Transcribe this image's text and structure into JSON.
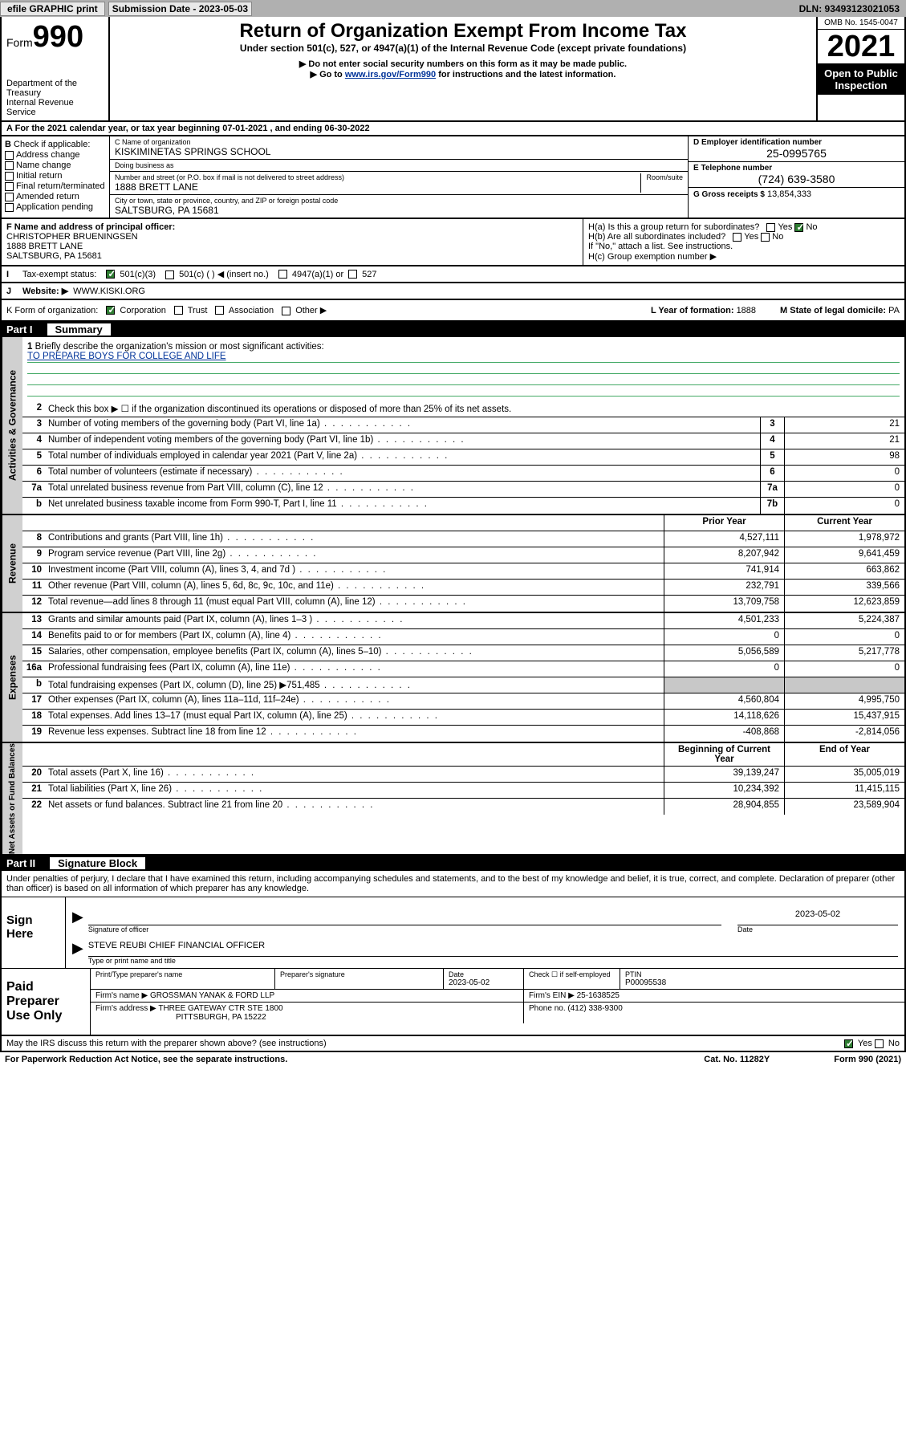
{
  "top": {
    "efile": "efile GRAPHIC print",
    "submission_label": "Submission Date - 2023-05-03",
    "dln": "DLN: 93493123021053"
  },
  "header": {
    "form_label": "Form",
    "form_number": "990",
    "dept": "Department of the Treasury",
    "irs": "Internal Revenue Service",
    "title": "Return of Organization Exempt From Income Tax",
    "subtitle": "Under section 501(c), 527, or 4947(a)(1) of the Internal Revenue Code (except private foundations)",
    "note1": "▶ Do not enter social security numbers on this form as it may be made public.",
    "note2_pre": "▶ Go to ",
    "note2_link": "www.irs.gov/Form990",
    "note2_post": " for instructions and the latest information.",
    "omb": "OMB No. 1545-0047",
    "year": "2021",
    "inspection": "Open to Public Inspection"
  },
  "row_a": "For the 2021 calendar year, or tax year beginning 07-01-2021    , and ending 06-30-2022",
  "b_checks": {
    "title": "Check if applicable:",
    "addr": "Address change",
    "name": "Name change",
    "init": "Initial return",
    "final": "Final return/terminated",
    "amend": "Amended return",
    "app": "Application pending"
  },
  "c": {
    "name_lbl": "C Name of organization",
    "name": "KISKIMINETAS SPRINGS SCHOOL",
    "dba_lbl": "Doing business as",
    "dba": "",
    "street_lbl": "Number and street (or P.O. box if mail is not delivered to street address)",
    "room_lbl": "Room/suite",
    "street": "1888 BRETT LANE",
    "city_lbl": "City or town, state or province, country, and ZIP or foreign postal code",
    "city": "SALTSBURG, PA  15681"
  },
  "d": {
    "ein_lbl": "D Employer identification number",
    "ein": "25-0995765",
    "phone_lbl": "E Telephone number",
    "phone": "(724) 639-3580",
    "gross_lbl": "G Gross receipts $",
    "gross": "13,854,333"
  },
  "f": {
    "lbl": "F Name and address of principal officer:",
    "name": "CHRISTOPHER BRUENINGSEN",
    "street": "1888 BRETT LANE",
    "city": "SALTSBURG, PA  15681"
  },
  "h": {
    "a": "H(a)  Is this a group return for subordinates?",
    "b": "H(b)  Are all subordinates included?",
    "note": "If \"No,\" attach a list. See instructions.",
    "c": "H(c)  Group exemption number ▶"
  },
  "i": {
    "lbl": "Tax-exempt status:",
    "o1": "501(c)(3)",
    "o2": "501(c) (   ) ◀ (insert no.)",
    "o3": "4947(a)(1) or",
    "o4": "527"
  },
  "j": {
    "lbl": "Website: ▶",
    "val": "WWW.KISKI.ORG"
  },
  "k": {
    "lbl": "K Form of organization:",
    "corp": "Corporation",
    "trust": "Trust",
    "assoc": "Association",
    "other": "Other ▶",
    "l_lbl": "L Year of formation:",
    "l_val": "1888",
    "m_lbl": "M State of legal domicile:",
    "m_val": "PA"
  },
  "part1": {
    "label": "Part I",
    "title": "Summary"
  },
  "govern": {
    "q1": "Briefly describe the organization's mission or most significant activities:",
    "mission": "TO PREPARE BOYS FOR COLLEGE AND LIFE",
    "q2": "Check this box ▶ ☐  if the organization discontinued its operations or disposed of more than 25% of its net assets.",
    "rows": [
      {
        "n": "3",
        "t": "Number of voting members of the governing body (Part VI, line 1a)",
        "box": "3",
        "v": "21"
      },
      {
        "n": "4",
        "t": "Number of independent voting members of the governing body (Part VI, line 1b)",
        "box": "4",
        "v": "21"
      },
      {
        "n": "5",
        "t": "Total number of individuals employed in calendar year 2021 (Part V, line 2a)",
        "box": "5",
        "v": "98"
      },
      {
        "n": "6",
        "t": "Total number of volunteers (estimate if necessary)",
        "box": "6",
        "v": "0"
      },
      {
        "n": "7a",
        "t": "Total unrelated business revenue from Part VIII, column (C), line 12",
        "box": "7a",
        "v": "0"
      },
      {
        "n": "b",
        "t": "Net unrelated business taxable income from Form 990-T, Part I, line 11",
        "box": "7b",
        "v": "0"
      }
    ]
  },
  "twocol_header": {
    "prior": "Prior Year",
    "curr": "Current Year"
  },
  "revenue": [
    {
      "n": "8",
      "t": "Contributions and grants (Part VIII, line 1h)",
      "p": "4,527,111",
      "c": "1,978,972"
    },
    {
      "n": "9",
      "t": "Program service revenue (Part VIII, line 2g)",
      "p": "8,207,942",
      "c": "9,641,459"
    },
    {
      "n": "10",
      "t": "Investment income (Part VIII, column (A), lines 3, 4, and 7d )",
      "p": "741,914",
      "c": "663,862"
    },
    {
      "n": "11",
      "t": "Other revenue (Part VIII, column (A), lines 5, 6d, 8c, 9c, 10c, and 11e)",
      "p": "232,791",
      "c": "339,566"
    },
    {
      "n": "12",
      "t": "Total revenue—add lines 8 through 11 (must equal Part VIII, column (A), line 12)",
      "p": "13,709,758",
      "c": "12,623,859"
    }
  ],
  "expenses": [
    {
      "n": "13",
      "t": "Grants and similar amounts paid (Part IX, column (A), lines 1–3 )",
      "p": "4,501,233",
      "c": "5,224,387"
    },
    {
      "n": "14",
      "t": "Benefits paid to or for members (Part IX, column (A), line 4)",
      "p": "0",
      "c": "0"
    },
    {
      "n": "15",
      "t": "Salaries, other compensation, employee benefits (Part IX, column (A), lines 5–10)",
      "p": "5,056,589",
      "c": "5,217,778"
    },
    {
      "n": "16a",
      "t": "Professional fundraising fees (Part IX, column (A), line 11e)",
      "p": "0",
      "c": "0"
    },
    {
      "n": "b",
      "t": "Total fundraising expenses (Part IX, column (D), line 25) ▶751,485",
      "p": "",
      "c": "",
      "gray": true
    },
    {
      "n": "17",
      "t": "Other expenses (Part IX, column (A), lines 11a–11d, 11f–24e)",
      "p": "4,560,804",
      "c": "4,995,750"
    },
    {
      "n": "18",
      "t": "Total expenses. Add lines 13–17 (must equal Part IX, column (A), line 25)",
      "p": "14,118,626",
      "c": "15,437,915"
    },
    {
      "n": "19",
      "t": "Revenue less expenses. Subtract line 18 from line 12",
      "p": "-408,868",
      "c": "-2,814,056"
    }
  ],
  "net_header": {
    "beg": "Beginning of Current Year",
    "end": "End of Year"
  },
  "netassets": [
    {
      "n": "20",
      "t": "Total assets (Part X, line 16)",
      "p": "39,139,247",
      "c": "35,005,019"
    },
    {
      "n": "21",
      "t": "Total liabilities (Part X, line 26)",
      "p": "10,234,392",
      "c": "11,415,115"
    },
    {
      "n": "22",
      "t": "Net assets or fund balances. Subtract line 21 from line 20",
      "p": "28,904,855",
      "c": "23,589,904"
    }
  ],
  "part2": {
    "label": "Part II",
    "title": "Signature Block"
  },
  "sig": {
    "declare": "Under penalties of perjury, I declare that I have examined this return, including accompanying schedules and statements, and to the best of my knowledge and belief, it is true, correct, and complete. Declaration of preparer (other than officer) is based on all information of which preparer has any knowledge.",
    "sign_here": "Sign Here",
    "sig_officer_lbl": "Signature of officer",
    "date_lbl": "Date",
    "date": "2023-05-02",
    "officer": "STEVE REUBI CHIEF FINANCIAL OFFICER",
    "officer_lbl": "Type or print name and title"
  },
  "paid": {
    "title": "Paid Preparer Use Only",
    "h_name": "Print/Type preparer's name",
    "h_sig": "Preparer's signature",
    "h_date": "Date",
    "date": "2023-05-02",
    "h_check": "Check ☐ if self-employed",
    "h_ptin": "PTIN",
    "ptin": "P00095538",
    "firm_name_lbl": "Firm's name    ▶",
    "firm_name": "GROSSMAN YANAK & FORD LLP",
    "firm_ein_lbl": "Firm's EIN ▶",
    "firm_ein": "25-1638525",
    "firm_addr_lbl": "Firm's address ▶",
    "firm_addr1": "THREE GATEWAY CTR STE 1800",
    "firm_addr2": "PITTSBURGH, PA  15222",
    "phone_lbl": "Phone no.",
    "phone": "(412) 338-9300"
  },
  "footer": {
    "discuss": "May the IRS discuss this return with the preparer shown above? (see instructions)",
    "paperwork": "For Paperwork Reduction Act Notice, see the separate instructions.",
    "catno": "Cat. No. 11282Y",
    "formno": "Form 990 (2021)"
  }
}
